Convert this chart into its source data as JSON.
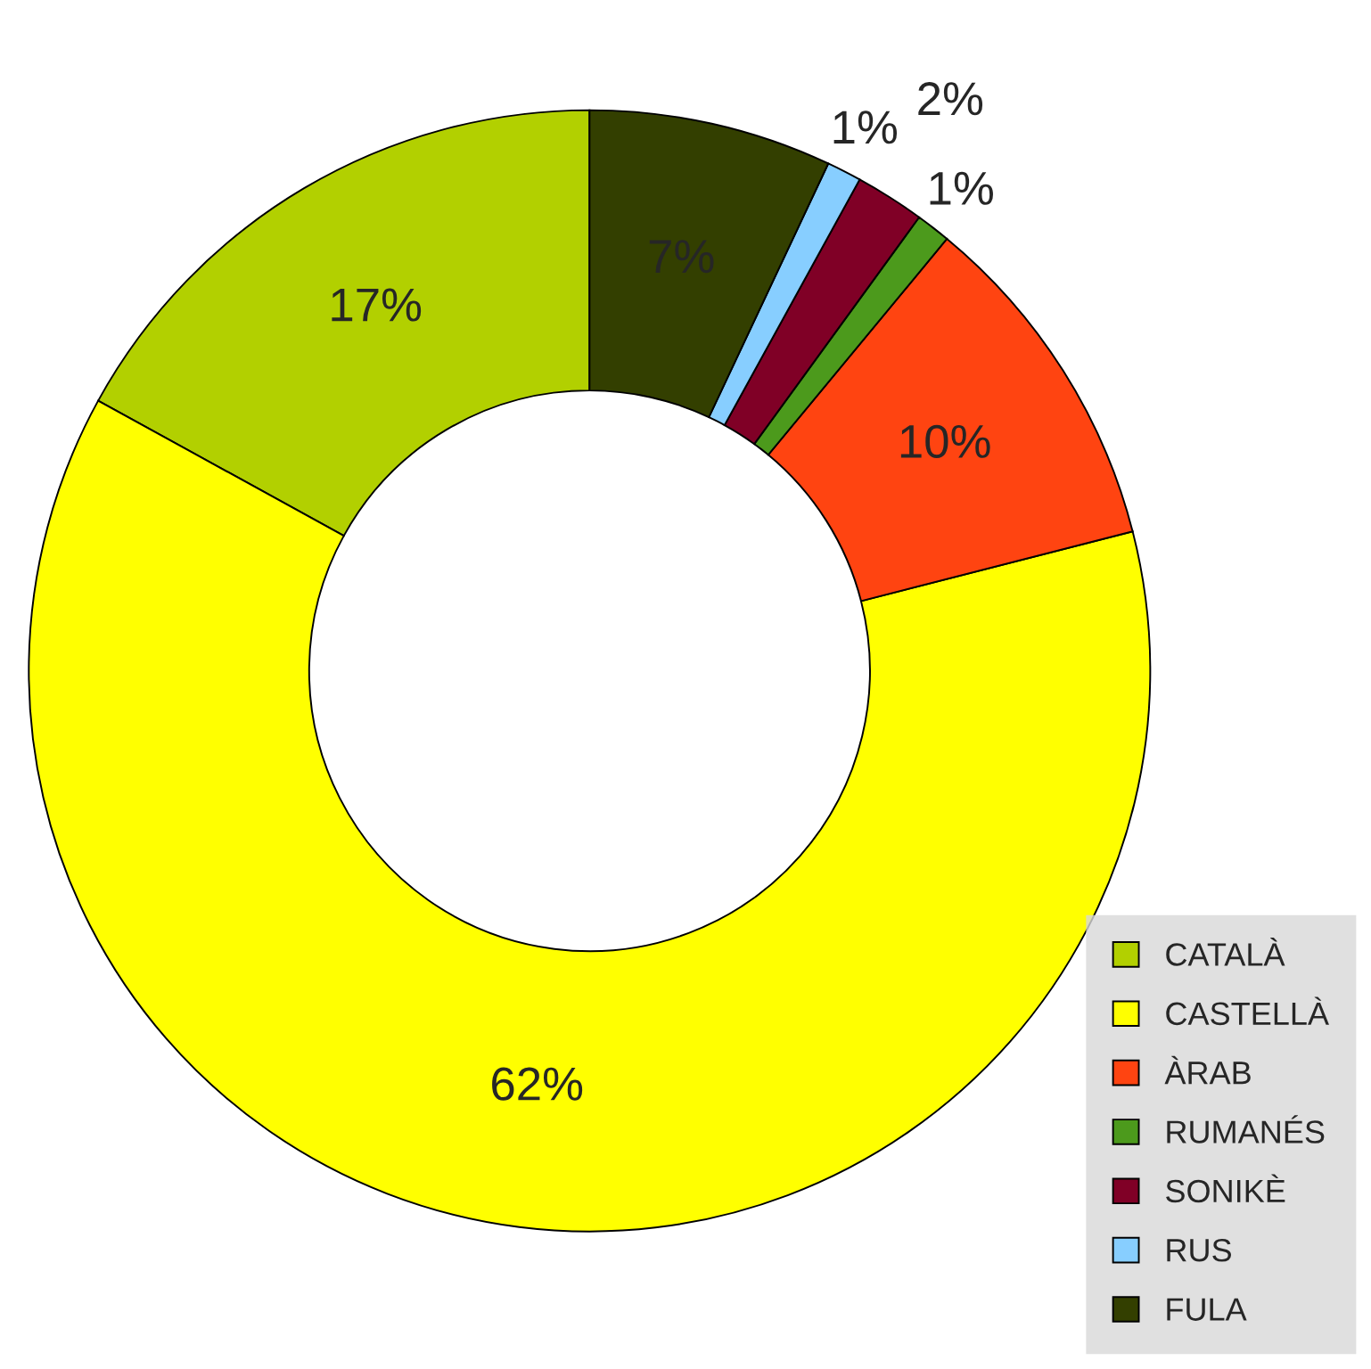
{
  "chart_data": {
    "type": "donut",
    "categories": [
      "CATALÀ",
      "CASTELLÀ",
      "ÀRAB",
      "RUMANÉS",
      "SONIKÈ",
      "RUS",
      "FULA"
    ],
    "values": [
      17,
      62,
      10,
      1,
      2,
      1,
      7
    ],
    "colors": [
      "#b2d000",
      "#ffff00",
      "#ff4411",
      "#4c9a1c",
      "#800026",
      "#87ceff",
      "#333f00"
    ],
    "value_labels": [
      "17%",
      "62%",
      "10%",
      "1%",
      "2%",
      "1%",
      "7%"
    ],
    "legend": "bottom right"
  }
}
